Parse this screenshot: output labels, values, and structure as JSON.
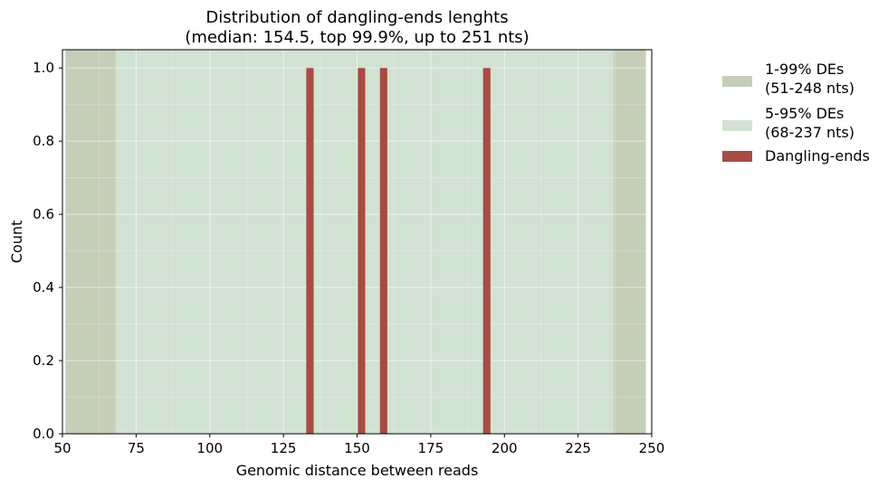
{
  "chart_data": {
    "type": "bar",
    "title": [
      "Distribution of dangling-ends lenghts",
      "(median: 154.5, top 99.9%, up to 251 nts)"
    ],
    "xlabel": "Genomic distance between reads",
    "ylabel": "Count",
    "xlim": [
      50,
      250
    ],
    "ylim": [
      0,
      1.05
    ],
    "xticks": [
      50,
      75,
      100,
      125,
      150,
      175,
      200,
      225,
      250
    ],
    "yticks": [
      0.0,
      0.2,
      0.4,
      0.6,
      0.8,
      1.0
    ],
    "ytick_labels": [
      "0.0",
      "0.2",
      "0.4",
      "0.6",
      "0.8",
      "1.0"
    ],
    "grid": true,
    "legend_position": "outside-right",
    "spans": [
      {
        "name": "1-99% DEs\n(51-248 nts)",
        "lines": [
          "1-99% DEs",
          "(51-248 nts)"
        ],
        "x_start": 51,
        "x_end": 248,
        "color": "#c5ceb8"
      },
      {
        "name": "5-95% DEs\n(68-237 nts)",
        "lines": [
          "5-95% DEs",
          "(68-237 nts)"
        ],
        "x_start": 68,
        "x_end": 237,
        "color": "#d1e1d2"
      }
    ],
    "series": [
      {
        "name": "Dangling-ends",
        "color": "#a84a45",
        "bar_width": 2.5,
        "x": [
          134,
          151.5,
          159,
          194
        ],
        "values": [
          1,
          1,
          1,
          1
        ]
      }
    ]
  }
}
